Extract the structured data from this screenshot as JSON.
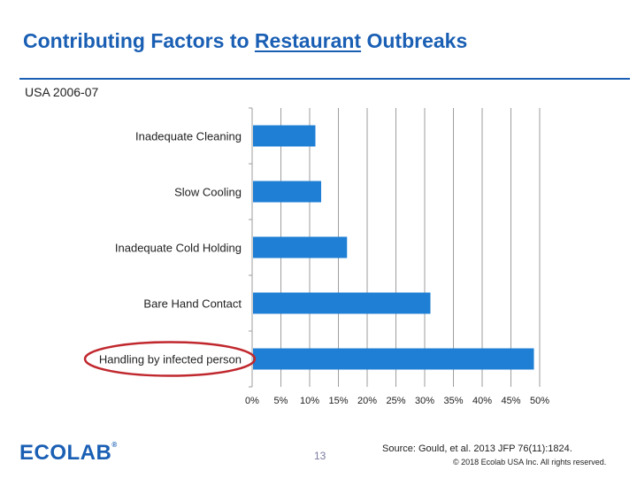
{
  "title": {
    "prefix": "Contributing Factors to ",
    "underlined": "Restaurant",
    "suffix": " Outbreaks"
  },
  "subtitle": "USA 2006-07",
  "footer": {
    "logo_text": "ECOLAB",
    "logo_mark": "®",
    "page_number": "13",
    "source": "Source:  Gould, et al. 2013 JFP 76(11):1824.",
    "copyright": "© 2018 Ecolab USA Inc. All rights reserved."
  },
  "colors": {
    "title": "#1a5fb4",
    "bar": "#1f7fd4",
    "highlight": "#c0282e",
    "grid": "#9e9e9e"
  },
  "chart_data": {
    "type": "bar",
    "orientation": "horizontal",
    "categories": [
      "Inadequate Cleaning",
      "Slow Cooling",
      "Inadequate Cold Holding",
      "Bare Hand Contact",
      "Handling by infected person"
    ],
    "values": [
      11,
      12,
      16.5,
      31,
      49
    ],
    "xlim": [
      0,
      50
    ],
    "x_ticks": [
      "0%",
      "5%",
      "10%",
      "15%",
      "20%",
      "25%",
      "30%",
      "35%",
      "40%",
      "45%",
      "50%"
    ],
    "grid": true,
    "highlighted_category": "Handling by infected person"
  }
}
